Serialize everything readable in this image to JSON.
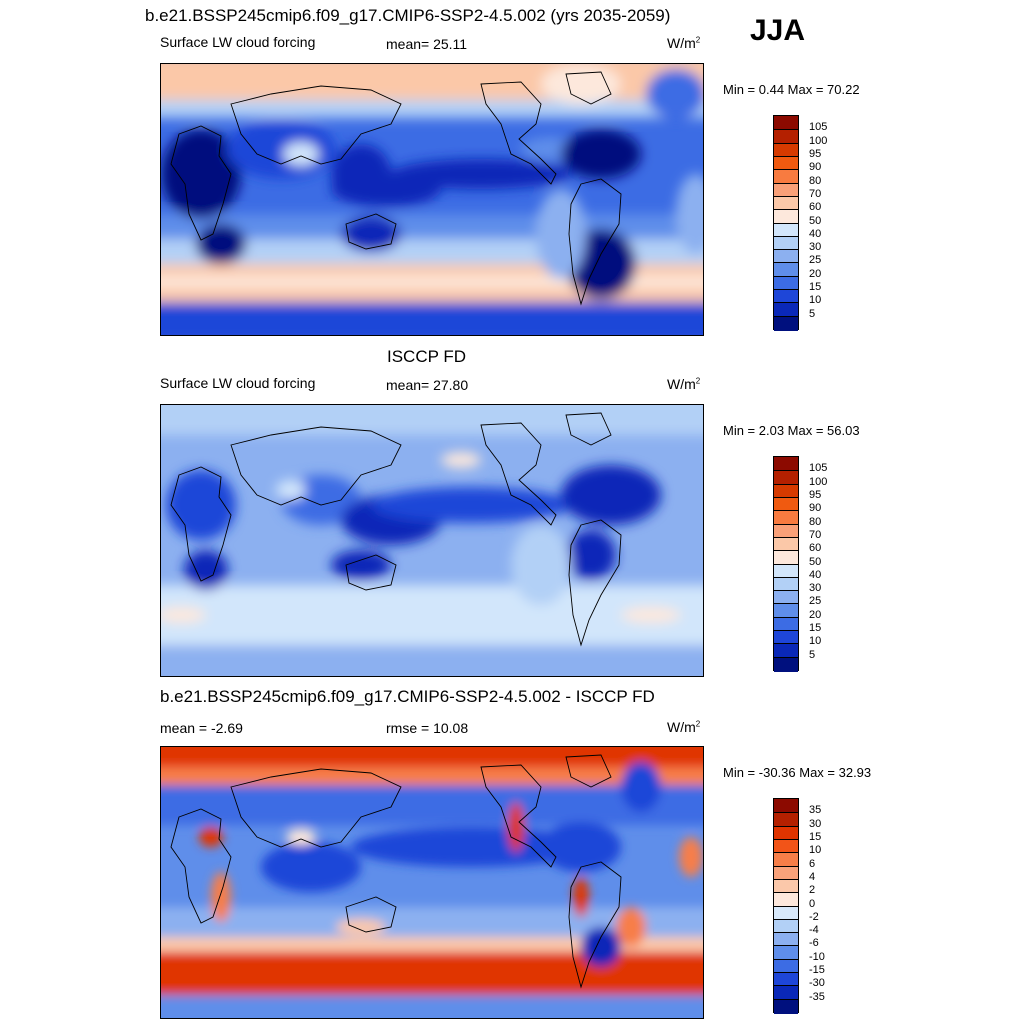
{
  "season": "JJA",
  "panels": [
    {
      "id": "model",
      "title": "b.e21.BSSP245cmip6.f09_g17.CMIP6-SSP2-4.5.002 (yrs 2035-2059)",
      "left_label": "Surface LW cloud forcing",
      "center_label": "mean=  25.11",
      "units": "W/m",
      "units_exp": "2",
      "minmax": "Min =   0.44 Max =  70.22",
      "palette": "abs",
      "stats": {
        "mean": 25.11,
        "min": 0.44,
        "max": 70.22
      }
    },
    {
      "id": "obs",
      "title": "ISCCP FD",
      "left_label": "Surface LW cloud forcing",
      "center_label": "mean=  27.80",
      "units": "W/m",
      "units_exp": "2",
      "minmax": "Min =   2.03 Max =  56.03",
      "palette": "abs",
      "stats": {
        "mean": 27.8,
        "min": 2.03,
        "max": 56.03
      }
    },
    {
      "id": "diff",
      "title": "b.e21.BSSP245cmip6.f09_g17.CMIP6-SSP2-4.5.002 - ISCCP FD",
      "left_label": "mean =  -2.69",
      "center_label": "rmse =  10.08",
      "units": "W/m",
      "units_exp": "2",
      "minmax": "Min = -30.36 Max =  32.93",
      "palette": "diff",
      "stats": {
        "mean": -2.69,
        "rmse": 10.08,
        "min": -30.36,
        "max": 32.93
      }
    }
  ],
  "colorbars": {
    "abs_levels": [
      "105",
      "100",
      "95",
      "90",
      "80",
      "70",
      "60",
      "50",
      "40",
      "30",
      "25",
      "20",
      "15",
      "10",
      "5"
    ],
    "diff_levels": [
      "35",
      "30",
      "15",
      "10",
      "6",
      "4",
      "2",
      "0",
      "-2",
      "-4",
      "-6",
      "-10",
      "-15",
      "-30",
      "-35"
    ],
    "abs_colors": [
      "#8c0a00",
      "#b42000",
      "#d63a00",
      "#f05a10",
      "#f87b40",
      "#f9a078",
      "#fbc8a8",
      "#fde8dc",
      "#d2e6fb",
      "#b2d0f6",
      "#8cb0f0",
      "#5f8eea",
      "#3c6ce4",
      "#1e46d8",
      "#0a28b8",
      "#00107e"
    ],
    "diff_colors": [
      "#8c0a00",
      "#b42000",
      "#e03400",
      "#f25418",
      "#f77e48",
      "#f9a27a",
      "#fbc8aa",
      "#fde8dc",
      "#d8e9fb",
      "#b2d0f6",
      "#8cb0f0",
      "#5f8eea",
      "#3c6ce4",
      "#1e46d8",
      "#0a28b8",
      "#00107e"
    ]
  }
}
